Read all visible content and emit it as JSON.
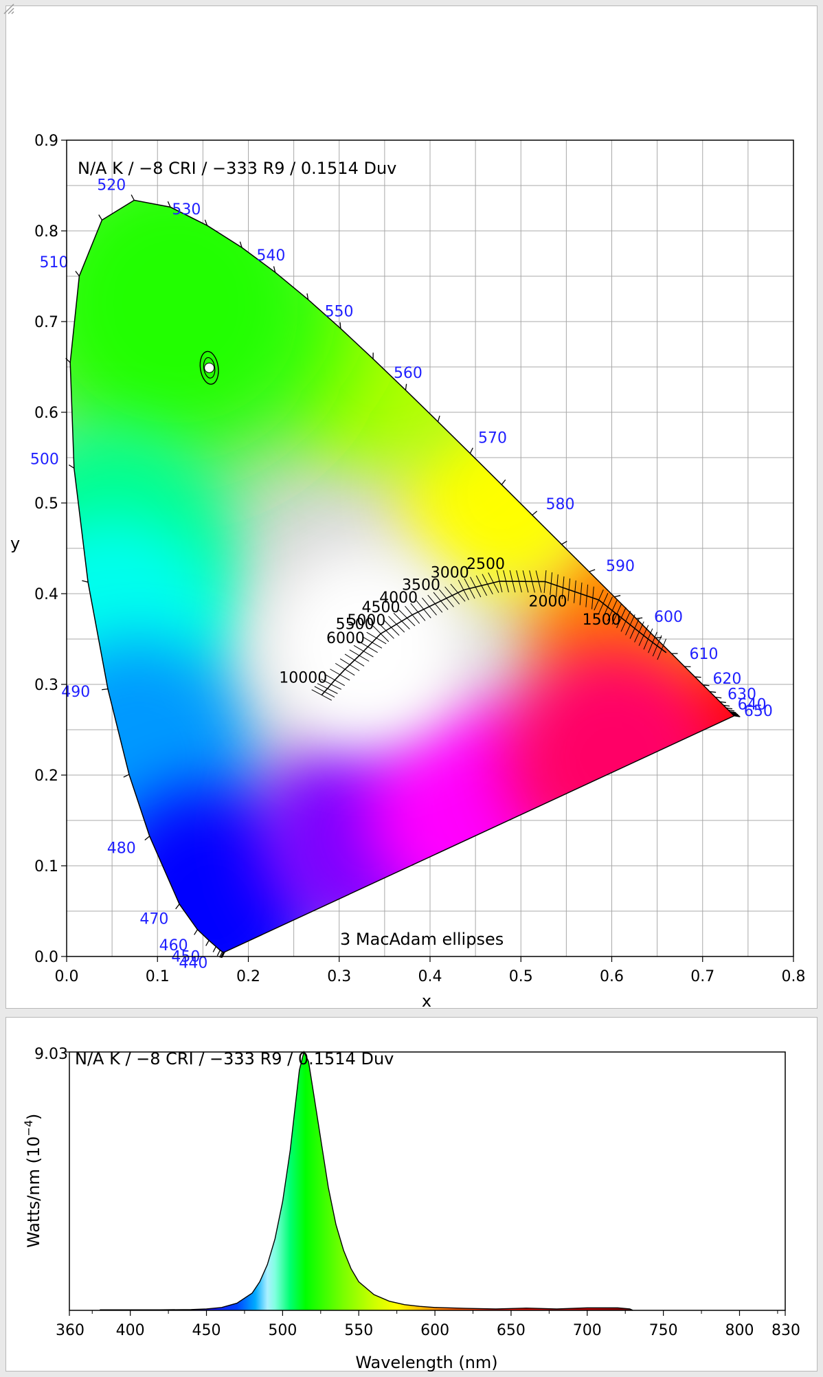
{
  "cie_chart": {
    "type": "scatter",
    "info": "N/A K / −8 CRI / −333 R9 / 0.1514 Duv",
    "xlabel": "x",
    "ylabel": "y",
    "xlim": [
      0.0,
      0.8
    ],
    "ylim": [
      0.0,
      0.9
    ],
    "x_ticks": [
      "0.0",
      "0.1",
      "0.2",
      "0.3",
      "0.4",
      "0.5",
      "0.6",
      "0.7",
      "0.8"
    ],
    "y_ticks": [
      "0.0",
      "0.1",
      "0.2",
      "0.3",
      "0.4",
      "0.5",
      "0.6",
      "0.7",
      "0.8",
      "0.9"
    ],
    "grid": true,
    "ellipse_note": "3  MacAdam ellipses",
    "chromaticity_point": {
      "x": 0.157,
      "y": 0.649
    },
    "locus": [
      [
        0.1741,
        0.005
      ],
      [
        0.174,
        0.005
      ],
      [
        0.1738,
        0.0049
      ],
      [
        0.1733,
        0.0048
      ],
      [
        0.1726,
        0.0048
      ],
      [
        0.1714,
        0.0051
      ],
      [
        0.1689,
        0.0069
      ],
      [
        0.1644,
        0.0109
      ],
      [
        0.1566,
        0.0177
      ],
      [
        0.144,
        0.0297
      ],
      [
        0.1241,
        0.0578
      ],
      [
        0.0913,
        0.1327
      ],
      [
        0.0687,
        0.2007
      ],
      [
        0.0454,
        0.295
      ],
      [
        0.0235,
        0.4127
      ],
      [
        0.0082,
        0.5384
      ],
      [
        0.0039,
        0.6548
      ],
      [
        0.0139,
        0.7502
      ],
      [
        0.0389,
        0.812
      ],
      [
        0.0743,
        0.8338
      ],
      [
        0.1142,
        0.8262
      ],
      [
        0.1547,
        0.8059
      ],
      [
        0.1929,
        0.7816
      ],
      [
        0.2296,
        0.7543
      ],
      [
        0.2658,
        0.7243
      ],
      [
        0.3016,
        0.6923
      ],
      [
        0.3373,
        0.6589
      ],
      [
        0.3731,
        0.6245
      ],
      [
        0.4087,
        0.5896
      ],
      [
        0.4441,
        0.5547
      ],
      [
        0.4788,
        0.5202
      ],
      [
        0.5125,
        0.4866
      ],
      [
        0.5448,
        0.4544
      ],
      [
        0.5752,
        0.4242
      ],
      [
        0.6029,
        0.3965
      ],
      [
        0.627,
        0.3725
      ],
      [
        0.6482,
        0.3514
      ],
      [
        0.6658,
        0.334
      ],
      [
        0.6801,
        0.3197
      ],
      [
        0.6915,
        0.3083
      ],
      [
        0.7006,
        0.2993
      ],
      [
        0.7079,
        0.292
      ],
      [
        0.714,
        0.2859
      ],
      [
        0.719,
        0.2809
      ],
      [
        0.723,
        0.277
      ],
      [
        0.726,
        0.274
      ],
      [
        0.7283,
        0.2717
      ],
      [
        0.73,
        0.27
      ],
      [
        0.7311,
        0.2689
      ],
      [
        0.732,
        0.268
      ],
      [
        0.7327,
        0.2673
      ],
      [
        0.7334,
        0.2666
      ],
      [
        0.734,
        0.266
      ],
      [
        0.7344,
        0.2656
      ],
      [
        0.7346,
        0.2654
      ],
      [
        0.7347,
        0.2653
      ]
    ],
    "wavelength_labels": [
      {
        "nm": "440",
        "x": 0.1644,
        "y": 0.0109
      },
      {
        "nm": "450",
        "x": 0.1566,
        "y": 0.0177
      },
      {
        "nm": "460",
        "x": 0.144,
        "y": 0.0297
      },
      {
        "nm": "470",
        "x": 0.1241,
        "y": 0.0578
      },
      {
        "nm": "480",
        "x": 0.0913,
        "y": 0.1327
      },
      {
        "nm": "490",
        "x": 0.0454,
        "y": 0.295
      },
      {
        "nm": "500",
        "x": 0.0082,
        "y": 0.5384
      },
      {
        "nm": "510",
        "x": 0.0139,
        "y": 0.7502
      },
      {
        "nm": "520",
        "x": 0.0743,
        "y": 0.8338
      },
      {
        "nm": "530",
        "x": 0.1547,
        "y": 0.8059
      },
      {
        "nm": "540",
        "x": 0.2296,
        "y": 0.7543
      },
      {
        "nm": "550",
        "x": 0.3016,
        "y": 0.6923
      },
      {
        "nm": "560",
        "x": 0.3731,
        "y": 0.6245
      },
      {
        "nm": "570",
        "x": 0.4441,
        "y": 0.5547
      },
      {
        "nm": "580",
        "x": 0.5125,
        "y": 0.4866
      },
      {
        "nm": "590",
        "x": 0.5752,
        "y": 0.4242
      },
      {
        "nm": "600",
        "x": 0.627,
        "y": 0.3725
      },
      {
        "nm": "610",
        "x": 0.6658,
        "y": 0.334
      },
      {
        "nm": "620",
        "x": 0.6915,
        "y": 0.3083
      },
      {
        "nm": "630",
        "x": 0.7079,
        "y": 0.292
      },
      {
        "nm": "640",
        "x": 0.719,
        "y": 0.2809
      },
      {
        "nm": "650",
        "x": 0.726,
        "y": 0.274
      }
    ],
    "planckian_locus": [
      [
        0.2807,
        0.2883
      ],
      [
        0.2871,
        0.2954
      ],
      [
        0.2952,
        0.3048
      ],
      [
        0.3064,
        0.3166
      ],
      [
        0.3221,
        0.3318
      ],
      [
        0.3457,
        0.3559
      ],
      [
        0.3804,
        0.3767
      ],
      [
        0.4369,
        0.4041
      ],
      [
        0.4764,
        0.4137
      ],
      [
        0.5267,
        0.4133
      ],
      [
        0.5857,
        0.3931
      ],
      [
        0.6105,
        0.3735
      ],
      [
        0.64,
        0.35
      ],
      [
        0.66,
        0.335
      ]
    ],
    "cct_labels": [
      {
        "k": "10000",
        "x": 0.2807,
        "y": 0.2883
      },
      {
        "k": "6000",
        "x": 0.3221,
        "y": 0.3318
      },
      {
        "k": "5500",
        "x": 0.3324,
        "y": 0.3475
      },
      {
        "k": "5000",
        "x": 0.3451,
        "y": 0.3516
      },
      {
        "k": "4500",
        "x": 0.3611,
        "y": 0.3658
      },
      {
        "k": "4000",
        "x": 0.3804,
        "y": 0.3767
      },
      {
        "k": "3500",
        "x": 0.4053,
        "y": 0.3907
      },
      {
        "k": "3000",
        "x": 0.4369,
        "y": 0.4041
      },
      {
        "k": "2500",
        "x": 0.4764,
        "y": 0.4137
      },
      {
        "k": "2000",
        "x": 0.5267,
        "y": 0.4133
      },
      {
        "k": "1500",
        "x": 0.5857,
        "y": 0.3931
      }
    ]
  },
  "spd_chart": {
    "type": "area",
    "info": "N/A K / −8 CRI / −333 R9 / 0.1514 Duv",
    "xlabel": "Wavelength (nm)",
    "ylabel_main": "Watts/nm (10",
    "ylabel_sup": "−4",
    "ylabel_end": ")",
    "xlim": [
      360,
      830
    ],
    "ylim": [
      0,
      9.03
    ],
    "y_max_label": "9.03",
    "x_ticks": [
      "360",
      "400",
      "450",
      "500",
      "550",
      "600",
      "650",
      "700",
      "750",
      "800",
      "830"
    ],
    "peak_nm": 514,
    "peak_value": 9.03,
    "spectrum": [
      [
        380,
        0.02
      ],
      [
        420,
        0.02
      ],
      [
        440,
        0.03
      ],
      [
        450,
        0.05
      ],
      [
        460,
        0.1
      ],
      [
        470,
        0.25
      ],
      [
        480,
        0.6
      ],
      [
        485,
        1.0
      ],
      [
        490,
        1.6
      ],
      [
        495,
        2.5
      ],
      [
        500,
        3.8
      ],
      [
        505,
        5.6
      ],
      [
        508,
        7.0
      ],
      [
        511,
        8.4
      ],
      [
        514,
        9.03
      ],
      [
        517,
        8.7
      ],
      [
        520,
        7.7
      ],
      [
        525,
        6.0
      ],
      [
        530,
        4.3
      ],
      [
        535,
        3.0
      ],
      [
        540,
        2.1
      ],
      [
        545,
        1.45
      ],
      [
        550,
        1.0
      ],
      [
        560,
        0.55
      ],
      [
        570,
        0.32
      ],
      [
        580,
        0.2
      ],
      [
        590,
        0.14
      ],
      [
        600,
        0.1
      ],
      [
        620,
        0.07
      ],
      [
        640,
        0.05
      ],
      [
        660,
        0.08
      ],
      [
        680,
        0.05
      ],
      [
        700,
        0.09
      ],
      [
        720,
        0.09
      ],
      [
        728,
        0.05
      ],
      [
        730,
        0.0
      ]
    ]
  }
}
